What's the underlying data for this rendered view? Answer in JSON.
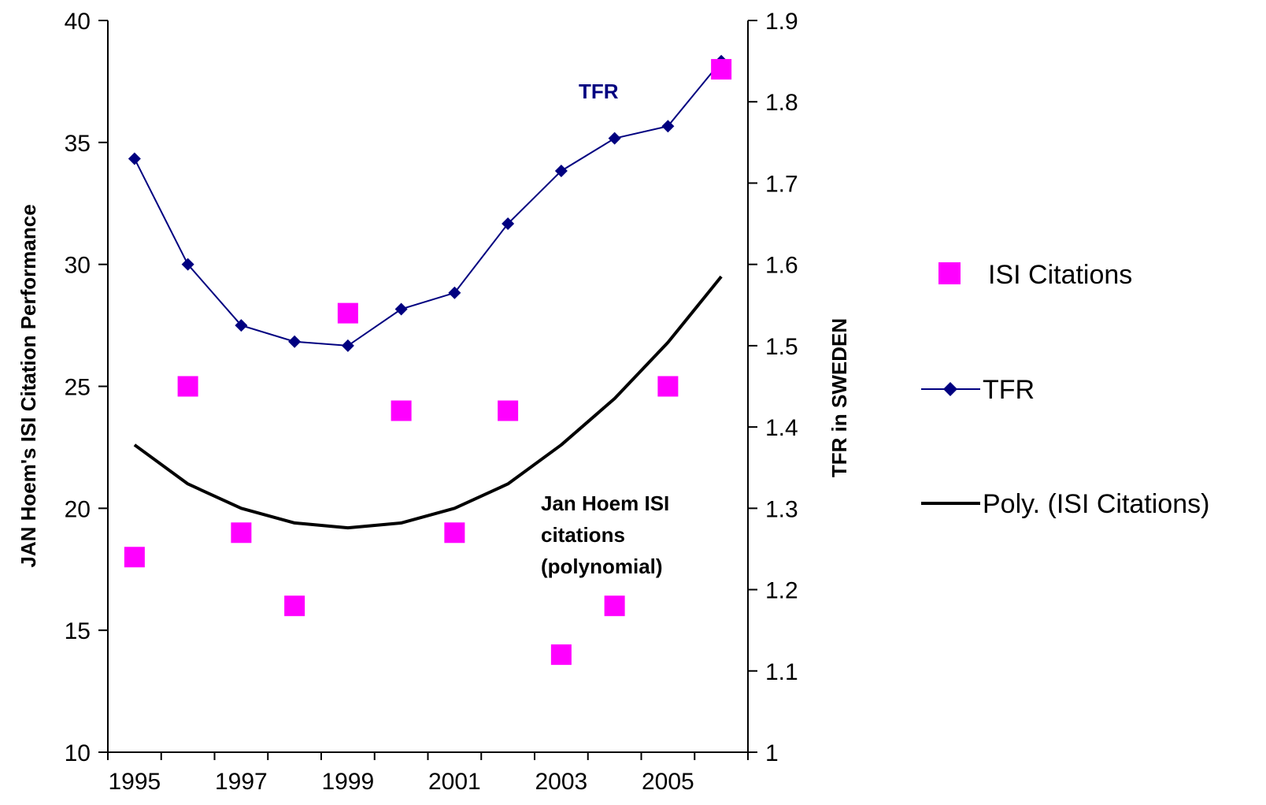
{
  "chart_data": {
    "type": "scatter",
    "x_tick_labels": [
      "1995",
      "1997",
      "1999",
      "2001",
      "2003",
      "2005"
    ],
    "y_left_tick_labels": [
      "10",
      "15",
      "20",
      "25",
      "30",
      "35",
      "40"
    ],
    "y_right_tick_labels": [
      "1",
      "1.1",
      "1.2",
      "1.3",
      "1.4",
      "1.5",
      "1.6",
      "1.7",
      "1.8",
      "1.9"
    ],
    "ylabel_left": "JAN Hoem's ISI Citation Performance",
    "ylabel_right": "TFR in SWEDEN",
    "ylim_left": [
      10,
      40
    ],
    "ylim_right": [
      1,
      1.9
    ],
    "xlim": [
      1994.5,
      2006.5
    ],
    "grid": false,
    "legend_position": "right",
    "series": [
      {
        "name": "ISI Citations",
        "type": "scatter",
        "axis": "left",
        "color": "#ff00ff",
        "marker": "square",
        "x": [
          1995,
          1996,
          1997,
          1998,
          1999,
          2000,
          2001,
          2002,
          2003,
          2004,
          2005,
          2006
        ],
        "y": [
          18,
          25,
          19,
          16,
          28,
          24,
          19,
          24,
          14,
          16,
          25,
          38
        ]
      },
      {
        "name": "TFR",
        "type": "line",
        "axis": "right",
        "color": "#000080",
        "marker": "diamond",
        "x": [
          1995,
          1996,
          1997,
          1998,
          1999,
          2000,
          2001,
          2002,
          2003,
          2004,
          2005,
          2006
        ],
        "y": [
          1.73,
          1.6,
          1.525,
          1.505,
          1.5,
          1.545,
          1.565,
          1.65,
          1.715,
          1.755,
          1.77,
          1.85
        ]
      },
      {
        "name": "Poly. (ISI Citations)",
        "type": "line",
        "axis": "left",
        "color": "#000000",
        "x": [
          1995,
          1996,
          1997,
          1998,
          1999,
          2000,
          2001,
          2002,
          2003,
          2004,
          2005,
          2006
        ],
        "y": [
          22.6,
          21.0,
          20.0,
          19.4,
          19.2,
          19.4,
          20.0,
          21.0,
          22.6,
          24.5,
          26.8,
          29.5
        ]
      }
    ],
    "annotations": [
      {
        "text": "TFR",
        "color": "#000080",
        "lines": [
          "TFR"
        ]
      },
      {
        "text": "Jan Hoem ISI citations (polynomial)",
        "color": "#000000",
        "lines": [
          "Jan Hoem ISI",
          "citations",
          "(polynomial)"
        ]
      }
    ],
    "legend": [
      "ISI Citations",
      "TFR",
      "Poly. (ISI Citations)"
    ]
  }
}
